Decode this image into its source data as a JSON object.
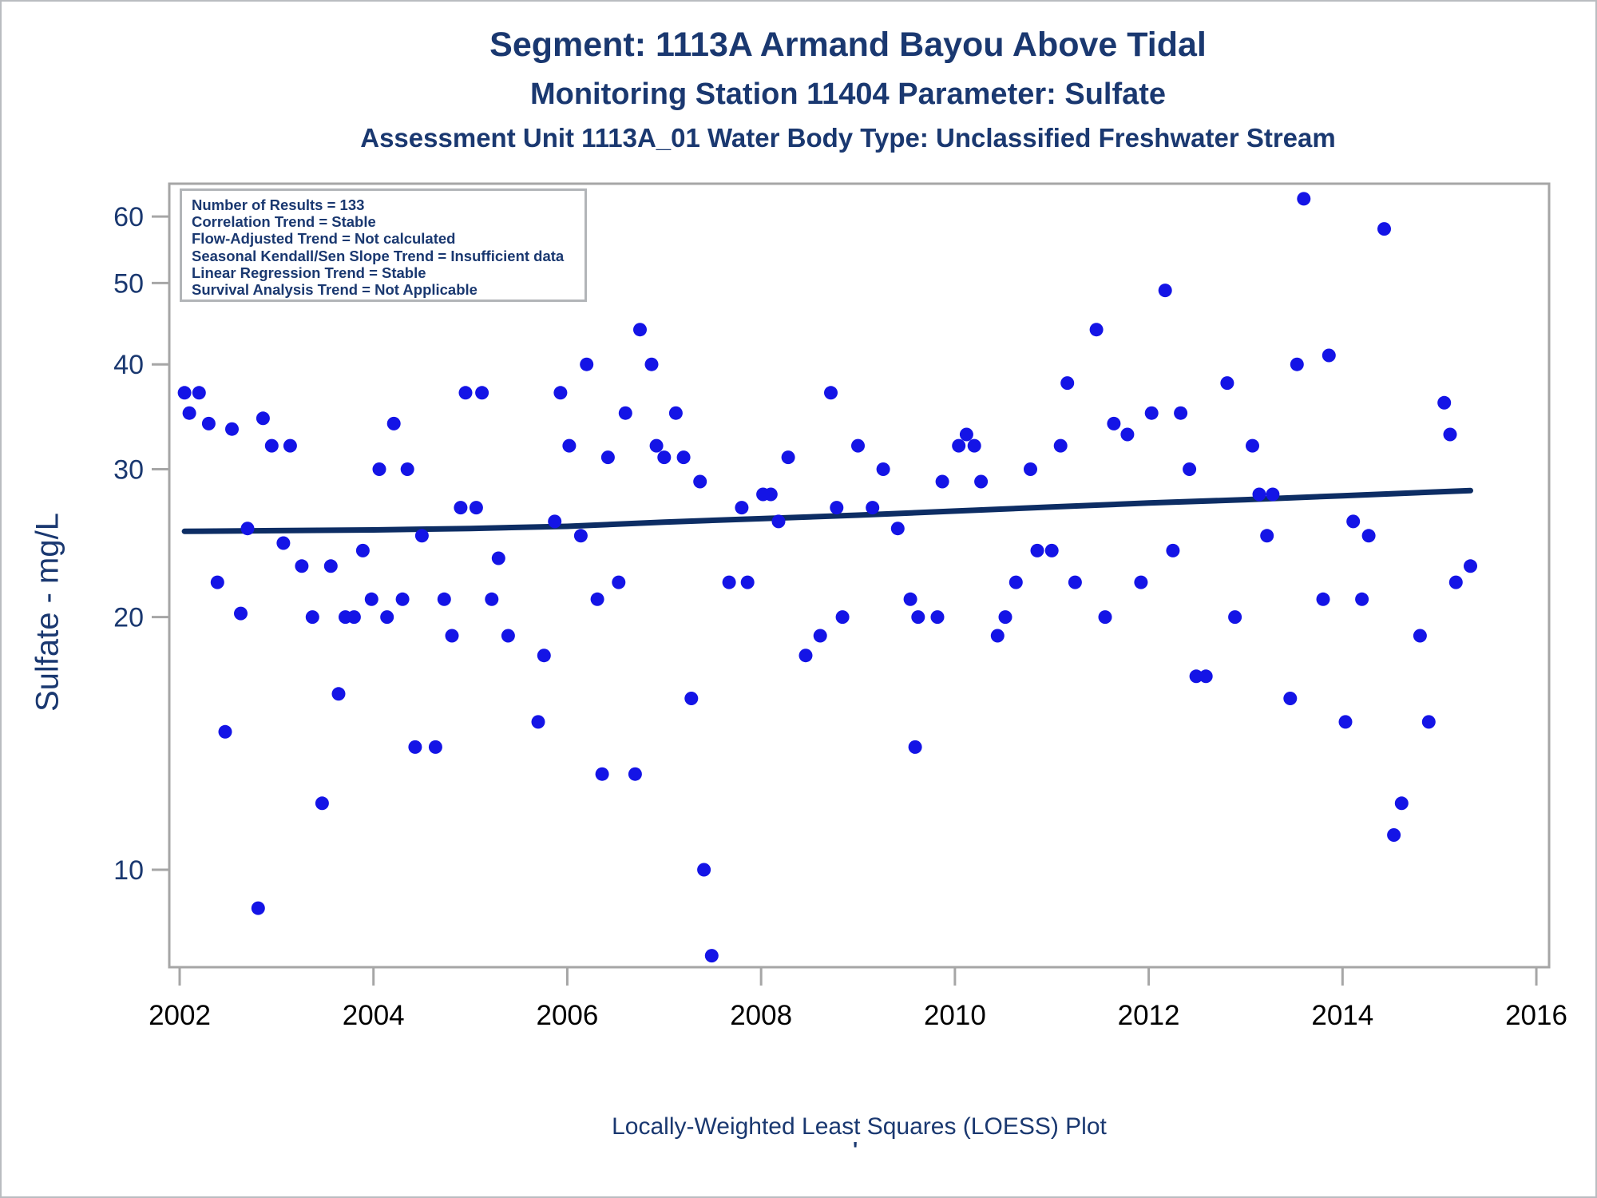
{
  "titles": {
    "line1": "Segment: 1113A  Armand Bayou Above Tidal",
    "line2": "Monitoring Station 11404 Parameter: Sulfate",
    "line3": "Assessment Unit 1113A_01   Water Body Type: Unclassified Freshwater Stream"
  },
  "info_box": {
    "lines": [
      "Number of Results = 133",
      "Correlation Trend = Stable",
      "Flow-Adjusted Trend = Not calculated",
      "Seasonal Kendall/Sen Slope Trend = Insufficient data",
      "Linear Regression Trend = Stable",
      "Survival Analysis Trend = Not Applicable"
    ]
  },
  "axes": {
    "y_label": "Sulfate - mg/L",
    "y_ticks": [
      10,
      20,
      30,
      40,
      50,
      60
    ],
    "x_ticks": [
      2002,
      2004,
      2006,
      2008,
      2010,
      2012,
      2014,
      2016
    ],
    "y_scale": "log",
    "grid": "off"
  },
  "caption": {
    "text": "Locally-Weighted Least Squares (LOESS) Plot",
    "mark": "'"
  },
  "colors": {
    "title_navy": "#1a3870",
    "point_blue": "#1414e6",
    "trend_navy": "#0d2d64",
    "axis_gray": "#a6a6a6",
    "x_tick_label": "#000000",
    "y_tick_label": "#1a3870"
  },
  "chart_data": {
    "type": "scatter",
    "title": "Segment: 1113A  Armand Bayou Above Tidal",
    "xlabel": "",
    "ylabel": "Sulfate - mg/L",
    "x_range": [
      2001.89,
      2016.13
    ],
    "y_range_log": [
      7.2,
      66
    ],
    "legend_position": "none",
    "points": [
      [
        2002.05,
        37
      ],
      [
        2002.1,
        35
      ],
      [
        2002.2,
        37
      ],
      [
        2002.3,
        34
      ],
      [
        2002.39,
        22
      ],
      [
        2002.47,
        14.6
      ],
      [
        2002.54,
        33.5
      ],
      [
        2002.63,
        20.2
      ],
      [
        2002.7,
        25.5
      ],
      [
        2002.81,
        9
      ],
      [
        2002.86,
        34.5
      ],
      [
        2002.95,
        32
      ],
      [
        2003.07,
        24.5
      ],
      [
        2003.14,
        32
      ],
      [
        2003.26,
        23
      ],
      [
        2003.37,
        20
      ],
      [
        2003.47,
        12
      ],
      [
        2003.56,
        23
      ],
      [
        2003.64,
        16.2
      ],
      [
        2003.71,
        20
      ],
      [
        2003.8,
        20
      ],
      [
        2003.89,
        24
      ],
      [
        2003.98,
        21
      ],
      [
        2004.06,
        30
      ],
      [
        2004.14,
        20
      ],
      [
        2004.21,
        34
      ],
      [
        2004.3,
        21
      ],
      [
        2004.35,
        30
      ],
      [
        2004.43,
        14
      ],
      [
        2004.5,
        25
      ],
      [
        2004.64,
        14
      ],
      [
        2004.73,
        21
      ],
      [
        2004.81,
        19
      ],
      [
        2004.9,
        27
      ],
      [
        2004.95,
        37
      ],
      [
        2005.06,
        27
      ],
      [
        2005.12,
        37
      ],
      [
        2005.22,
        21
      ],
      [
        2005.29,
        23.5
      ],
      [
        2005.39,
        19
      ],
      [
        2005.7,
        15
      ],
      [
        2005.76,
        18
      ],
      [
        2005.87,
        26
      ],
      [
        2005.93,
        37
      ],
      [
        2006.02,
        32
      ],
      [
        2006.14,
        25
      ],
      [
        2006.2,
        40
      ],
      [
        2006.31,
        21
      ],
      [
        2006.36,
        13
      ],
      [
        2006.42,
        31
      ],
      [
        2006.53,
        22
      ],
      [
        2006.6,
        35
      ],
      [
        2006.7,
        13
      ],
      [
        2006.75,
        44
      ],
      [
        2006.87,
        40
      ],
      [
        2006.92,
        32
      ],
      [
        2007.0,
        31
      ],
      [
        2007.12,
        35
      ],
      [
        2007.2,
        31
      ],
      [
        2007.28,
        16
      ],
      [
        2007.37,
        29
      ],
      [
        2007.41,
        10
      ],
      [
        2007.49,
        7.9
      ],
      [
        2007.67,
        22
      ],
      [
        2007.8,
        27
      ],
      [
        2007.86,
        22
      ],
      [
        2008.02,
        28
      ],
      [
        2008.1,
        28
      ],
      [
        2008.18,
        26
      ],
      [
        2008.28,
        31
      ],
      [
        2008.46,
        18
      ],
      [
        2008.61,
        19
      ],
      [
        2008.72,
        37
      ],
      [
        2008.78,
        27
      ],
      [
        2008.84,
        20
      ],
      [
        2009.0,
        32
      ],
      [
        2009.15,
        27
      ],
      [
        2009.26,
        30
      ],
      [
        2009.41,
        25.5
      ],
      [
        2009.54,
        21
      ],
      [
        2009.59,
        14
      ],
      [
        2009.62,
        20
      ],
      [
        2009.82,
        20
      ],
      [
        2009.87,
        29
      ],
      [
        2010.04,
        32
      ],
      [
        2010.12,
        33
      ],
      [
        2010.2,
        32
      ],
      [
        2010.27,
        29
      ],
      [
        2010.44,
        19
      ],
      [
        2010.52,
        20
      ],
      [
        2010.63,
        22
      ],
      [
        2010.78,
        30
      ],
      [
        2010.85,
        24
      ],
      [
        2011.0,
        24
      ],
      [
        2011.09,
        32
      ],
      [
        2011.16,
        38
      ],
      [
        2011.24,
        22
      ],
      [
        2011.46,
        44
      ],
      [
        2011.55,
        20
      ],
      [
        2011.64,
        34
      ],
      [
        2011.78,
        33
      ],
      [
        2011.92,
        22
      ],
      [
        2012.03,
        35
      ],
      [
        2012.17,
        49
      ],
      [
        2012.25,
        24
      ],
      [
        2012.33,
        35
      ],
      [
        2012.42,
        30
      ],
      [
        2012.49,
        17
      ],
      [
        2012.59,
        17
      ],
      [
        2012.81,
        38
      ],
      [
        2012.89,
        20
      ],
      [
        2013.07,
        32
      ],
      [
        2013.14,
        28
      ],
      [
        2013.22,
        25
      ],
      [
        2013.28,
        28
      ],
      [
        2013.46,
        16
      ],
      [
        2013.53,
        40
      ],
      [
        2013.6,
        63
      ],
      [
        2013.8,
        21
      ],
      [
        2013.86,
        41
      ],
      [
        2014.03,
        15
      ],
      [
        2014.11,
        26
      ],
      [
        2014.2,
        21
      ],
      [
        2014.27,
        25
      ],
      [
        2014.43,
        58
      ],
      [
        2014.53,
        11
      ],
      [
        2014.61,
        12
      ],
      [
        2014.8,
        19
      ],
      [
        2014.89,
        15
      ],
      [
        2015.05,
        36
      ],
      [
        2015.11,
        33
      ],
      [
        2015.17,
        22
      ],
      [
        2015.32,
        23
      ]
    ],
    "loess_trend": [
      [
        2002.05,
        25.3
      ],
      [
        2003,
        25.35
      ],
      [
        2004,
        25.4
      ],
      [
        2005,
        25.5
      ],
      [
        2006,
        25.65
      ],
      [
        2007,
        25.95
      ],
      [
        2008,
        26.2
      ],
      [
        2009,
        26.45
      ],
      [
        2010,
        26.75
      ],
      [
        2011,
        27.05
      ],
      [
        2012,
        27.35
      ],
      [
        2013,
        27.6
      ],
      [
        2014,
        27.9
      ],
      [
        2015.32,
        28.3
      ]
    ]
  }
}
